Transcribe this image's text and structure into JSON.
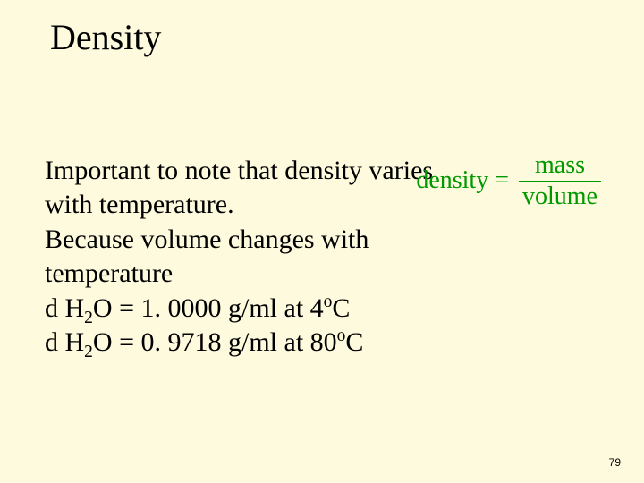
{
  "slide": {
    "title": "Density",
    "background_color": "#fdfadd",
    "title_fontsize": 40,
    "body_fontsize": 30,
    "formula": {
      "lhs": "density =",
      "numerator": "mass",
      "denominator": "volume",
      "color": "#009900",
      "fontsize": 28
    },
    "body": {
      "line1": "Important to note that density varies",
      "line2": "with temperature.",
      "line3": "Because volume changes with",
      "line4": "temperature",
      "line5_prefix": "d H",
      "line5_sub": "2",
      "line5_mid": "O = 1. 0000 g/ml at 4",
      "line5_sup": "o",
      "line5_suffix": "C",
      "line6_prefix": "d H",
      "line6_sub": "2",
      "line6_mid": "O = 0. 9718 g/ml at 80",
      "line6_sup": "o",
      "line6_suffix": "C"
    },
    "page_number": "79"
  }
}
